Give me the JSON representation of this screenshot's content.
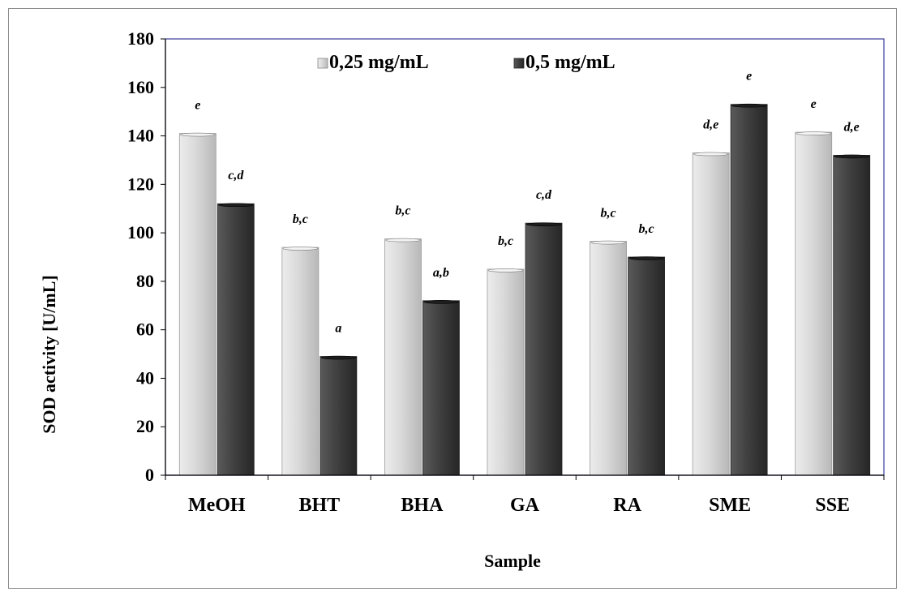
{
  "chart_data": {
    "type": "bar",
    "title": "",
    "xlabel": "Sample",
    "ylabel": "SOD activity [U/mL]",
    "ylim": [
      0,
      180
    ],
    "yticks": [
      0,
      20,
      40,
      60,
      80,
      100,
      120,
      140,
      160,
      180
    ],
    "grid": false,
    "legend_position": "top",
    "categories": [
      "MeOH",
      "BHT",
      "BHA",
      "GA",
      "RA",
      "SME",
      "SSE"
    ],
    "series": [
      {
        "name": "0,25 mg/mL",
        "color": "#d4d4d4",
        "values": [
          141,
          94,
          97.5,
          85,
          96.5,
          133,
          141.5
        ],
        "labels": [
          "e",
          "b,c",
          "b,c",
          "b,c",
          "b,c",
          "d,e",
          "e"
        ]
      },
      {
        "name": "0,5 mg/mL",
        "color": "#3f3f3f",
        "values": [
          112,
          49,
          72,
          104,
          90,
          153,
          132
        ],
        "labels": [
          "c,d",
          "a",
          "a,b",
          "c,d",
          "b,c",
          "e",
          "d,e"
        ]
      }
    ]
  }
}
